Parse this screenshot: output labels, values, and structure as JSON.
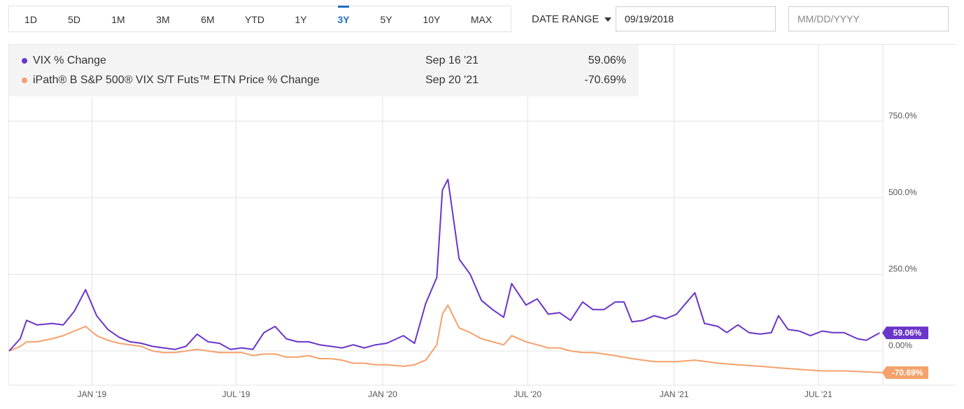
{
  "range_tabs": [
    {
      "label": "1D",
      "active": false
    },
    {
      "label": "5D",
      "active": false
    },
    {
      "label": "1M",
      "active": false
    },
    {
      "label": "3M",
      "active": false
    },
    {
      "label": "6M",
      "active": false
    },
    {
      "label": "YTD",
      "active": false
    },
    {
      "label": "1Y",
      "active": false
    },
    {
      "label": "3Y",
      "active": true
    },
    {
      "label": "5Y",
      "active": false
    },
    {
      "label": "10Y",
      "active": false
    },
    {
      "label": "MAX",
      "active": false
    }
  ],
  "date_range": {
    "label": "DATE RANGE",
    "start_value": "09/19/2018",
    "end_placeholder": "MM/DD/YYYY"
  },
  "colors": {
    "vix": "#6a35c9",
    "etn": "#f5a16c",
    "accent": "#1f6fc0"
  },
  "legend": [
    {
      "name": "VIX % Change",
      "date": "Sep 16 '21",
      "value": "59.06%"
    },
    {
      "name": "iPath® B S&P 500® VIX S/T Futs™ ETN Price % Change",
      "date": "Sep 20 '21",
      "value": "-70.69%"
    }
  ],
  "chart_data": {
    "type": "line",
    "y_tick_labels": [
      "750.0%",
      "500.0%",
      "250.0%",
      "0.00%"
    ],
    "y_ticks": [
      750,
      500,
      250,
      0
    ],
    "x_tick_labels": [
      "JAN '19",
      "JUL '19",
      "JAN '20",
      "JUL '20",
      "JAN '21",
      "JUL '21"
    ],
    "x_ticks": [
      "2019-01-01",
      "2019-07-01",
      "2020-01-01",
      "2020-07-01",
      "2021-01-01",
      "2021-07-01"
    ],
    "x_range": [
      "2018-09-19",
      "2021-09-20"
    ],
    "ylim": [
      -110,
      870
    ],
    "grid": true,
    "end_labels": [
      "59.06%",
      "-70.69%"
    ],
    "series": [
      {
        "key": "vix",
        "x": [
          "2018-09-19",
          "2018-10-03",
          "2018-10-11",
          "2018-10-24",
          "2018-11-12",
          "2018-11-26",
          "2018-12-10",
          "2018-12-24",
          "2019-01-07",
          "2019-01-21",
          "2019-02-04",
          "2019-02-18",
          "2019-03-04",
          "2019-03-18",
          "2019-04-01",
          "2019-04-15",
          "2019-04-29",
          "2019-05-13",
          "2019-05-27",
          "2019-06-10",
          "2019-06-24",
          "2019-07-08",
          "2019-07-22",
          "2019-08-05",
          "2019-08-19",
          "2019-09-02",
          "2019-09-16",
          "2019-09-30",
          "2019-10-14",
          "2019-10-28",
          "2019-11-11",
          "2019-11-25",
          "2019-12-09",
          "2019-12-23",
          "2020-01-06",
          "2020-01-27",
          "2020-02-10",
          "2020-02-24",
          "2020-03-09",
          "2020-03-16",
          "2020-03-23",
          "2020-04-06",
          "2020-04-20",
          "2020-05-04",
          "2020-05-18",
          "2020-06-01",
          "2020-06-11",
          "2020-06-29",
          "2020-07-13",
          "2020-07-27",
          "2020-08-10",
          "2020-08-24",
          "2020-09-08",
          "2020-09-21",
          "2020-10-05",
          "2020-10-19",
          "2020-10-30",
          "2020-11-09",
          "2020-11-23",
          "2020-12-07",
          "2020-12-21",
          "2021-01-04",
          "2021-01-27",
          "2021-02-08",
          "2021-02-25",
          "2021-03-08",
          "2021-03-22",
          "2021-04-05",
          "2021-04-19",
          "2021-05-03",
          "2021-05-12",
          "2021-05-24",
          "2021-06-07",
          "2021-06-21",
          "2021-07-06",
          "2021-07-19",
          "2021-08-02",
          "2021-08-19",
          "2021-08-30",
          "2021-09-16"
        ],
        "y": [
          0,
          40,
          100,
          85,
          90,
          85,
          130,
          200,
          115,
          70,
          45,
          30,
          25,
          15,
          10,
          5,
          15,
          55,
          30,
          25,
          5,
          10,
          5,
          60,
          80,
          40,
          30,
          30,
          20,
          15,
          10,
          20,
          10,
          20,
          25,
          50,
          25,
          155,
          240,
          525,
          560,
          300,
          250,
          165,
          135,
          110,
          220,
          150,
          170,
          120,
          125,
          100,
          160,
          135,
          135,
          160,
          160,
          95,
          100,
          115,
          105,
          120,
          190,
          90,
          80,
          60,
          85,
          60,
          55,
          60,
          115,
          70,
          65,
          50,
          65,
          60,
          60,
          40,
          35,
          59.06
        ]
      },
      {
        "key": "etn",
        "x": [
          "2018-09-19",
          "2018-10-03",
          "2018-10-11",
          "2018-10-24",
          "2018-11-12",
          "2018-11-26",
          "2018-12-10",
          "2018-12-24",
          "2019-01-07",
          "2019-01-21",
          "2019-02-04",
          "2019-02-18",
          "2019-03-04",
          "2019-03-18",
          "2019-04-01",
          "2019-04-15",
          "2019-04-29",
          "2019-05-13",
          "2019-05-27",
          "2019-06-10",
          "2019-06-24",
          "2019-07-08",
          "2019-07-22",
          "2019-08-05",
          "2019-08-19",
          "2019-09-02",
          "2019-09-16",
          "2019-09-30",
          "2019-10-14",
          "2019-10-28",
          "2019-11-11",
          "2019-11-25",
          "2019-12-09",
          "2019-12-23",
          "2020-01-06",
          "2020-01-27",
          "2020-02-10",
          "2020-02-24",
          "2020-03-09",
          "2020-03-16",
          "2020-03-23",
          "2020-04-06",
          "2020-04-20",
          "2020-05-04",
          "2020-05-18",
          "2020-06-01",
          "2020-06-11",
          "2020-06-29",
          "2020-07-13",
          "2020-07-27",
          "2020-08-10",
          "2020-08-24",
          "2020-09-08",
          "2020-09-21",
          "2020-10-05",
          "2020-10-19",
          "2020-11-09",
          "2020-12-07",
          "2021-01-04",
          "2021-01-27",
          "2021-02-25",
          "2021-03-22",
          "2021-04-19",
          "2021-05-12",
          "2021-06-07",
          "2021-07-06",
          "2021-08-02",
          "2021-09-20"
        ],
        "y": [
          0,
          15,
          30,
          30,
          40,
          50,
          65,
          80,
          50,
          35,
          25,
          20,
          15,
          0,
          -5,
          -5,
          0,
          5,
          0,
          -5,
          -5,
          -5,
          -15,
          -10,
          -10,
          -20,
          -20,
          -15,
          -25,
          -25,
          -30,
          -40,
          -40,
          -45,
          -45,
          -50,
          -45,
          -30,
          20,
          120,
          150,
          75,
          60,
          40,
          30,
          20,
          50,
          30,
          20,
          10,
          10,
          0,
          -5,
          -5,
          -10,
          -15,
          -25,
          -35,
          -35,
          -30,
          -40,
          -45,
          -50,
          -55,
          -60,
          -65,
          -65,
          -70.69
        ]
      }
    ]
  }
}
